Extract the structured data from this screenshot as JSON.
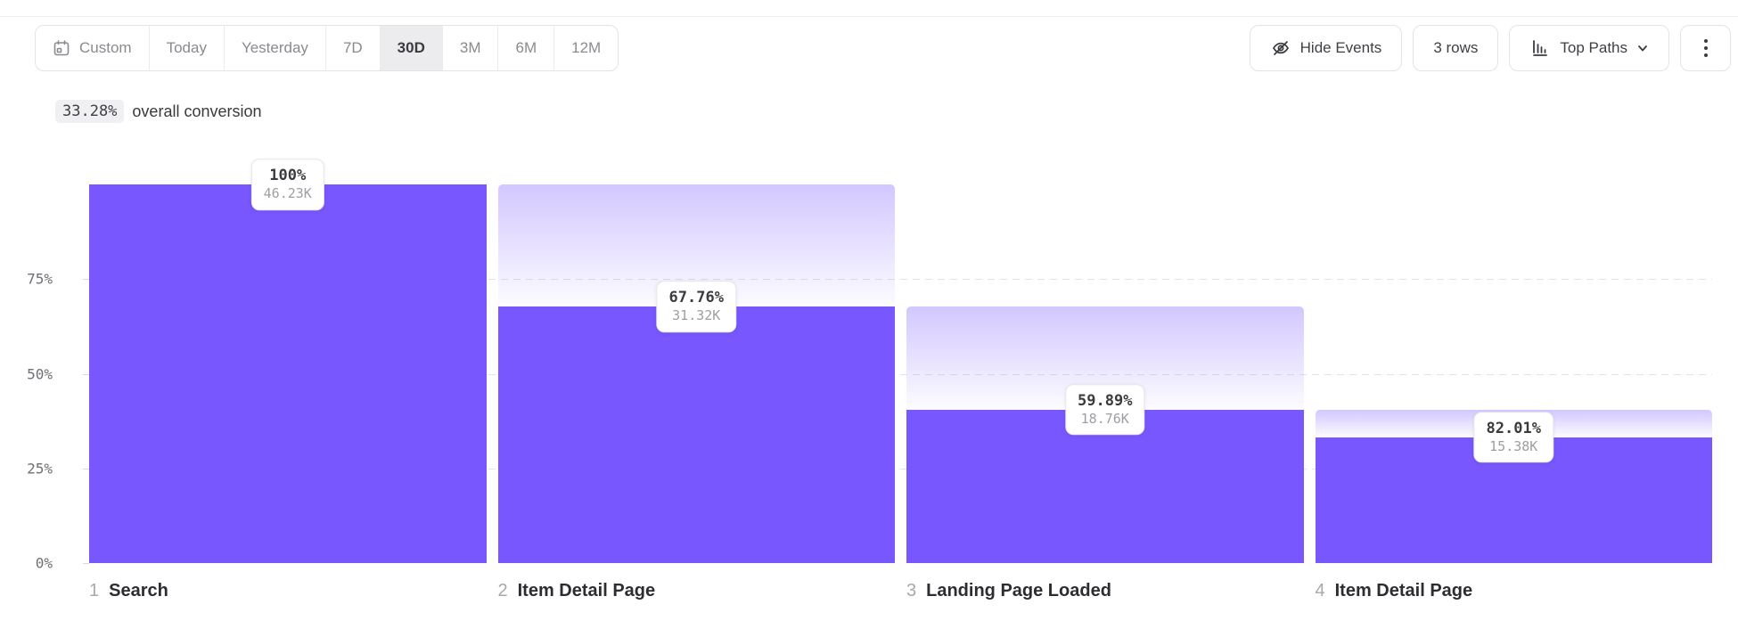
{
  "toolbar": {
    "date_ranges": [
      {
        "label": "Custom",
        "selected": false,
        "icon": "calendar-icon"
      },
      {
        "label": "Today",
        "selected": false
      },
      {
        "label": "Yesterday",
        "selected": false
      },
      {
        "label": "7D",
        "selected": false
      },
      {
        "label": "30D",
        "selected": true
      },
      {
        "label": "3M",
        "selected": false
      },
      {
        "label": "6M",
        "selected": false
      },
      {
        "label": "12M",
        "selected": false
      }
    ],
    "hide_events_label": "Hide Events",
    "rows_label": "3 rows",
    "top_paths_label": "Top Paths",
    "icons": {
      "hide_events": "eye-off-icon",
      "top_paths": "bar-chart-icon",
      "top_paths_caret": "chevron-down-icon",
      "more": "kebab-menu-icon"
    }
  },
  "summary": {
    "value": "33.28%",
    "label": "overall conversion"
  },
  "chart_data": {
    "type": "bar",
    "subtype": "funnel",
    "title": "33.28% overall conversion",
    "legend_position": "none",
    "grid": "dashed-horizontal",
    "ylim_pct": [
      0,
      100
    ],
    "y_ticks": [
      {
        "label": "75%",
        "pct": 75
      },
      {
        "label": "50%",
        "pct": 50
      },
      {
        "label": "25%",
        "pct": 25
      },
      {
        "label": "0%",
        "pct": 0
      }
    ],
    "steps": [
      {
        "index": "1",
        "name": "Search",
        "conversion_label": "100%",
        "count_label": "46.23K",
        "pct_of_total": 100
      },
      {
        "index": "2",
        "name": "Item Detail Page",
        "conversion_label": "67.76%",
        "count_label": "31.32K",
        "pct_of_total": 67.75
      },
      {
        "index": "3",
        "name": "Landing Page Loaded",
        "conversion_label": "59.89%",
        "count_label": "18.76K",
        "pct_of_total": 40.58
      },
      {
        "index": "4",
        "name": "Item Detail Page",
        "conversion_label": "82.01%",
        "count_label": "15.38K",
        "pct_of_total": 33.27
      }
    ],
    "colors": {
      "bar_solid": "#7857FE",
      "dropoff_gradient_top": "rgba(120,86,255,0.33)",
      "dropoff_gradient_bottom": "rgba(120,86,255,0.02)",
      "gridline": "#e2e2e8"
    }
  }
}
